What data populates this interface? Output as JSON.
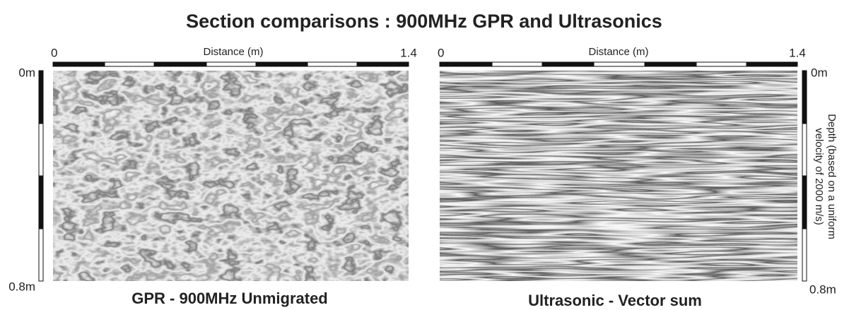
{
  "title": "Section comparisons : 900MHz GPR and Ultrasonics",
  "panels": [
    {
      "x_start": "0",
      "x_label": "Distance (m)",
      "x_end": "1.4",
      "y_start": "0m",
      "y_end": "0.8m",
      "caption": "GPR - 900MHz Unmigrated"
    },
    {
      "x_start": "0",
      "x_label": "Distance (m)",
      "x_end": "1.4",
      "y_start": "0m",
      "y_end": "0.8m",
      "caption": "Ultrasonic - Vector sum",
      "y_label": [
        "Depth (based on a uniform",
        "velocity of 2000 m/s)"
      ]
    }
  ]
}
